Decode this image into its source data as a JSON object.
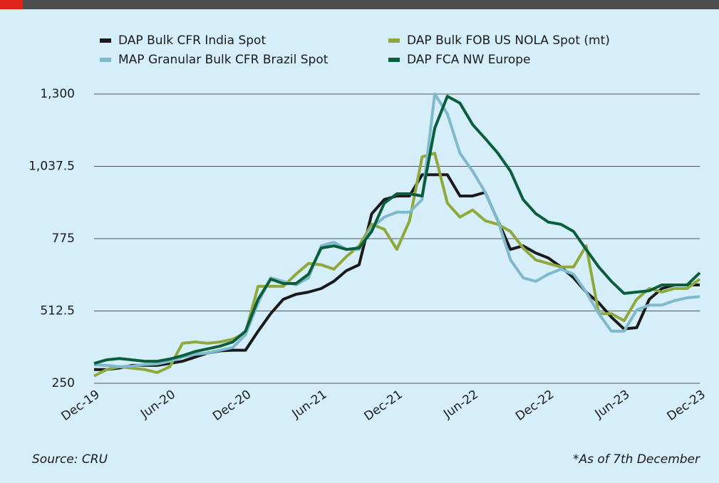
{
  "chart_data": {
    "type": "line",
    "categories": [
      "Dec-19",
      null,
      null,
      null,
      null,
      null,
      "Jun-20",
      null,
      null,
      null,
      null,
      null,
      "Dec-20",
      null,
      null,
      null,
      null,
      null,
      "Jun-21",
      null,
      null,
      null,
      null,
      null,
      "Dec-21",
      null,
      null,
      null,
      null,
      null,
      "Jun-22",
      null,
      null,
      null,
      null,
      null,
      "Dec-22",
      null,
      null,
      null,
      null,
      null,
      "Jun-23",
      null,
      null,
      null,
      null,
      null,
      "Dec-23"
    ],
    "series": [
      {
        "name": "DAP Bulk CFR India Spot",
        "color": "#1a1a1a",
        "values": [
          300,
          300,
          305,
          315,
          315,
          315,
          322,
          330,
          345,
          360,
          368,
          370,
          370,
          439,
          503,
          555,
          573,
          581,
          594,
          620,
          659,
          680,
          865,
          917,
          930,
          930,
          1007,
          1007,
          1007,
          930,
          930,
          943,
          840,
          736,
          749,
          723,
          705,
          672,
          633,
          581,
          542,
          490,
          447,
          452,
          555,
          594,
          607,
          607,
          607
        ]
      },
      {
        "name": "DAP Bulk FOB US NOLA Spot (mt)",
        "color": "#8fa83c",
        "values": [
          276,
          300,
          310,
          305,
          300,
          289,
          310,
          395,
          400,
          395,
          400,
          410,
          434,
          602,
          602,
          602,
          646,
          685,
          680,
          664,
          710,
          749,
          827,
          809,
          736,
          840,
          1072,
          1085,
          904,
          853,
          879,
          840,
          827,
          801,
          741,
          698,
          685,
          672,
          672,
          749,
          503,
          503,
          477,
          555,
          594,
          581,
          594,
          594,
          628
        ]
      },
      {
        "name": "MAP Granular Bulk CFR Brazil Spot",
        "color": "#7fb9cc",
        "values": [
          317,
          315,
          310,
          312,
          318,
          320,
          330,
          345,
          355,
          360,
          370,
          380,
          426,
          542,
          633,
          620,
          607,
          633,
          749,
          762,
          736,
          736,
          814,
          853,
          871,
          871,
          917,
          1300,
          1228,
          1085,
          1020,
          943,
          840,
          698,
          633,
          620,
          646,
          664,
          646,
          581,
          503,
          439,
          439,
          516,
          534,
          534,
          550,
          560,
          565
        ]
      },
      {
        "name": "DAP FCA NW Europe",
        "color": "#0b5e3b",
        "values": [
          322,
          335,
          340,
          335,
          330,
          330,
          338,
          350,
          365,
          375,
          385,
          400,
          439,
          555,
          628,
          612,
          612,
          646,
          741,
          749,
          736,
          741,
          801,
          904,
          938,
          938,
          930,
          1176,
          1292,
          1267,
          1189,
          1138,
          1085,
          1020,
          917,
          866,
          835,
          827,
          801,
          736,
          672,
          620,
          576,
          581,
          586,
          607,
          607,
          607,
          651
        ]
      }
    ],
    "ylim": [
      250,
      1300
    ],
    "yticks": [
      250,
      512.5,
      775,
      {
        "value": 1037.5,
        "label": "1,037.5"
      },
      {
        "value": 1300,
        "label": "1,300"
      }
    ],
    "grid": true,
    "source": "Source: CRU",
    "note": "*As of 7th December"
  }
}
